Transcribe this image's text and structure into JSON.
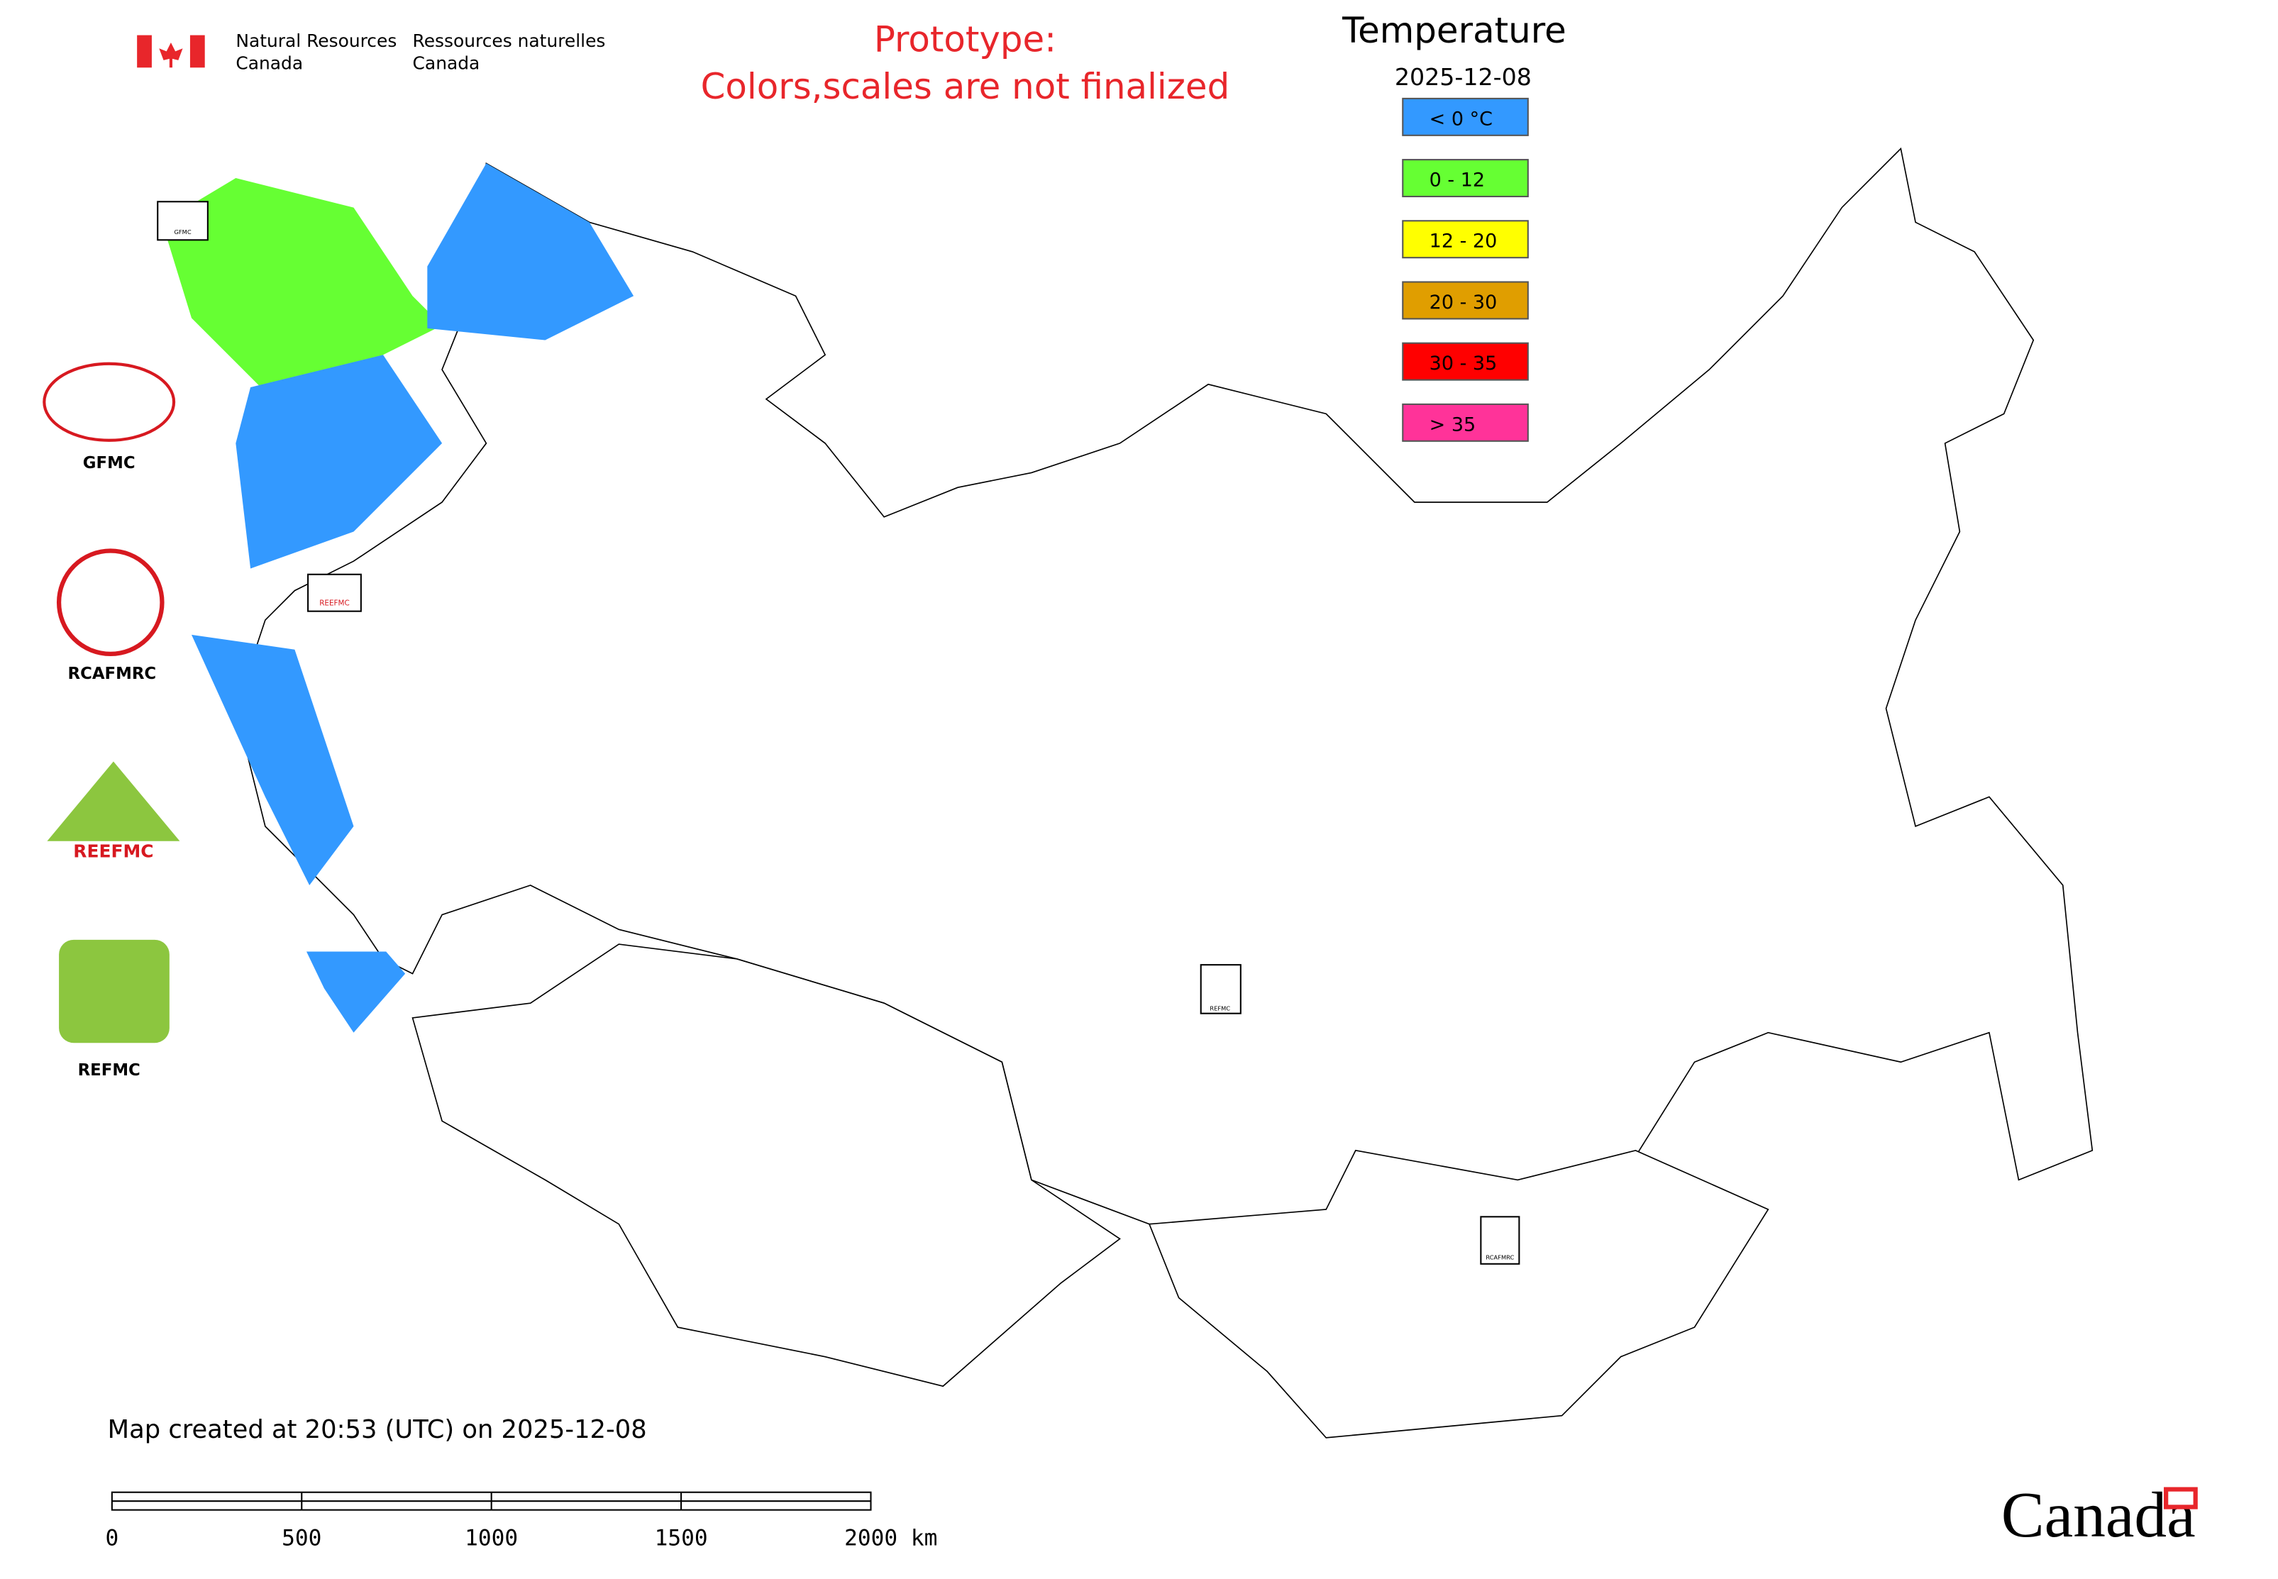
{
  "header": {
    "department_en": [
      "Natural Resources",
      "Canada"
    ],
    "department_fr": [
      "Ressources naturelles",
      "Canada"
    ]
  },
  "notice": [
    "Prototype:",
    "Colors,scales are not finalized"
  ],
  "legend": {
    "title": "Temperature",
    "date": "2025-12-08",
    "items": [
      {
        "label": "< 0 °C",
        "color": "#3399ff"
      },
      {
        "label": "0 - 12",
        "color": "#66ff33"
      },
      {
        "label": "12 - 20",
        "color": "#ffff00"
      },
      {
        "label": "20 - 30",
        "color": "#e09e00"
      },
      {
        "label": "30 - 35",
        "color": "#ff0000"
      },
      {
        "label": "> 35",
        "color": "#ff3399"
      }
    ]
  },
  "logos": [
    "GFMC",
    "RCAFMRC",
    "REEFMC",
    "REFMC"
  ],
  "footer": "Map created at 20:53 (UTC) on 2025-12-08",
  "scale_bar": {
    "labels": [
      "0",
      "500",
      "1000",
      "1500",
      "2000 km"
    ]
  },
  "wordmark": "Canada"
}
